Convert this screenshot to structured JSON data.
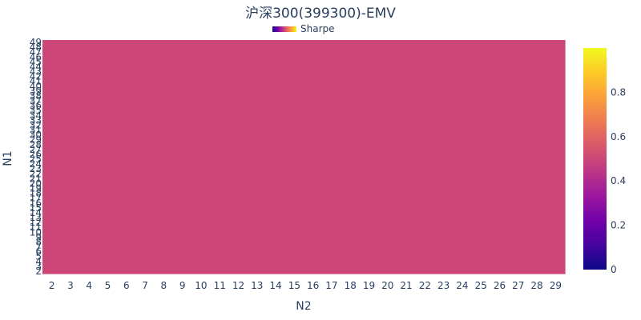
{
  "chart_data": {
    "type": "heatmap",
    "title": "沪深300(399300)-EMV",
    "xlabel": "N2",
    "ylabel": "N1",
    "x_categories": [
      2,
      3,
      4,
      5,
      6,
      7,
      8,
      9,
      10,
      11,
      12,
      13,
      14,
      15,
      16,
      17,
      18,
      19,
      20,
      21,
      22,
      23,
      24,
      25,
      26,
      27,
      28,
      29
    ],
    "y_categories": [
      2,
      3,
      4,
      5,
      6,
      7,
      8,
      9,
      10,
      11,
      12,
      13,
      14,
      15,
      16,
      17,
      18,
      19,
      20,
      21,
      22,
      23,
      24,
      25,
      26,
      27,
      28,
      29,
      30,
      31,
      32,
      33,
      34,
      35,
      36,
      37,
      38,
      39,
      40,
      41,
      42,
      43,
      44,
      45,
      46,
      47,
      48,
      49
    ],
    "z_uniform_value": 0.5,
    "legend": {
      "series_name": "Sharpe",
      "placement": "top-center"
    },
    "colorscale": {
      "name": "plasma",
      "range": [
        0,
        1
      ],
      "ticks": [
        "0",
        "0.2",
        "0.4",
        "0.6",
        "0.8"
      ],
      "tick_values": [
        0,
        0.2,
        0.4,
        0.6,
        0.8
      ],
      "colors": [
        "#0d0887",
        "#46039f",
        "#7201a8",
        "#9c179e",
        "#bd3786",
        "#d8576b",
        "#ed7953",
        "#fb9f3a",
        "#fdca26",
        "#f0f921"
      ]
    },
    "cell_color": "#cc4778"
  }
}
